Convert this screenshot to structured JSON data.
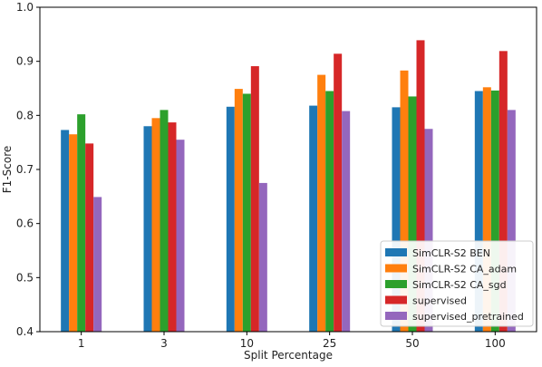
{
  "chart_data": {
    "type": "bar",
    "xlabel": "Split Percentage",
    "ylabel": "F1-Score",
    "ylim": [
      0.4,
      1.0
    ],
    "yticks": [
      "0.4",
      "0.5",
      "0.6",
      "0.7",
      "0.8",
      "0.9",
      "1.0"
    ],
    "categories": [
      "1",
      "3",
      "10",
      "25",
      "50",
      "100"
    ],
    "grid": false,
    "legend_position": "bottom-right",
    "series": [
      {
        "name": "SimCLR-S2 BEN",
        "color": "#1f77b4",
        "values": [
          0.773,
          0.78,
          0.816,
          0.818,
          0.815,
          0.845
        ]
      },
      {
        "name": "SimCLR-S2 CA_adam",
        "color": "#ff7f0e",
        "values": [
          0.765,
          0.795,
          0.849,
          0.875,
          0.883,
          0.852
        ]
      },
      {
        "name": "SimCLR-S2 CA_sgd",
        "color": "#2ca02c",
        "values": [
          0.802,
          0.81,
          0.84,
          0.845,
          0.835,
          0.846
        ]
      },
      {
        "name": "supervised",
        "color": "#d62728",
        "values": [
          0.748,
          0.787,
          0.891,
          0.914,
          0.939,
          0.919
        ]
      },
      {
        "name": "supervised_pretrained",
        "color": "#9467bd",
        "values": [
          0.649,
          0.755,
          0.675,
          0.808,
          0.775,
          0.81
        ]
      }
    ]
  }
}
